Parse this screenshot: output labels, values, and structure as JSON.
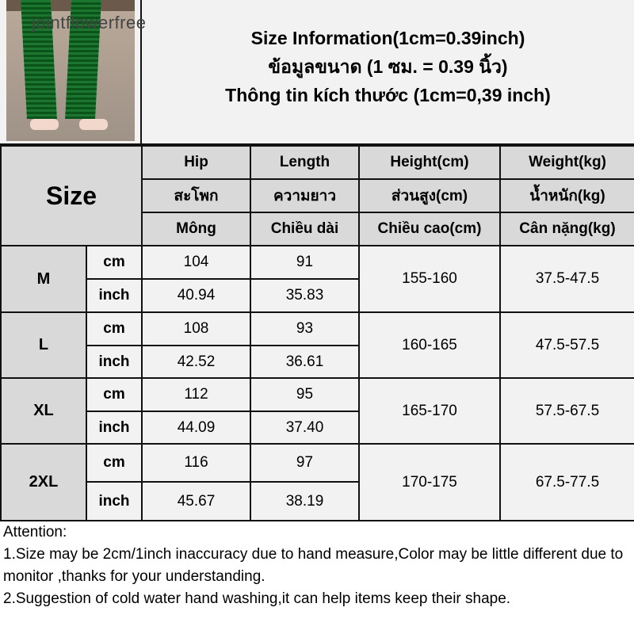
{
  "watermark": "jointflowerfree",
  "titles": [
    "Size Information(1cm=0.39inch)",
    "ข้อมูลขนาด (1 ซม. = 0.39 นิ้ว)",
    "Thông tin kích thước (1cm=0,39 inch)"
  ],
  "header": {
    "size": "Size",
    "columns": [
      [
        "Hip",
        "สะโพก",
        "Mông"
      ],
      [
        "Length",
        "ความยาว",
        "Chiều dài"
      ],
      [
        "Height(cm)",
        "ส่วนสูง(cm)",
        "Chiều cao(cm)"
      ],
      [
        "Weight(kg)",
        "น้ำหนัก(kg)",
        "Cân nặng(kg)"
      ]
    ]
  },
  "rows": [
    {
      "size": "M",
      "cm_label": "cm",
      "inch_label": "inch",
      "hip_cm": "104",
      "len_cm": "91",
      "hip_in": "40.94",
      "len_in": "35.83",
      "height": "155-160",
      "weight": "37.5-47.5"
    },
    {
      "size": "L",
      "cm_label": "cm",
      "inch_label": "inch",
      "hip_cm": "108",
      "len_cm": "93",
      "hip_in": "42.52",
      "len_in": "36.61",
      "height": "160-165",
      "weight": "47.5-57.5"
    },
    {
      "size": "XL",
      "cm_label": "cm",
      "inch_label": "inch",
      "hip_cm": "112",
      "len_cm": "95",
      "hip_in": "44.09",
      "len_in": "37.40",
      "height": "165-170",
      "weight": "57.5-67.5"
    },
    {
      "size": "2XL",
      "cm_label": "cm",
      "inch_label": "inch",
      "hip_cm": "116",
      "len_cm": "97",
      "hip_in": "45.67",
      "len_in": "38.19",
      "height": "170-175",
      "weight": "67.5-77.5"
    }
  ],
  "notes": [
    "Attention:",
    "1.Size may be 2cm/1inch inaccuracy due to hand measure,Color may be little different due to monitor ,thanks for your understanding.",
    "2.Suggestion of cold water hand washing,it can help items keep their shape."
  ]
}
